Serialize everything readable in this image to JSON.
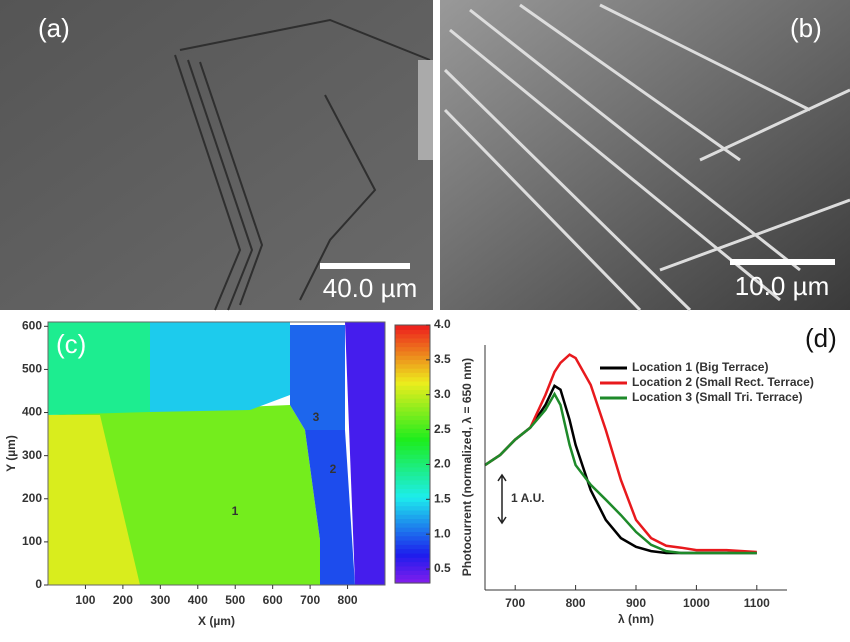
{
  "panels": [
    {
      "label": "(a)",
      "scale_bar": "40.0 µm"
    },
    {
      "label": "(b)",
      "scale_bar": "10.0 µm"
    }
  ],
  "chart_data": [
    {
      "type": "heatmap",
      "label": "(c)",
      "xlabel": "X (µm)",
      "ylabel": "Y (µm)",
      "xlim": [
        0,
        900
      ],
      "xticks": [
        100,
        200,
        300,
        400,
        500,
        600,
        700,
        800
      ],
      "ylim": [
        0,
        610
      ],
      "yticks": [
        0,
        100,
        200,
        300,
        400,
        500,
        600
      ],
      "clim": [
        0.3,
        4.0
      ],
      "cticks": [
        0.5,
        {
          "value": 1,
          "label": "1.0"
        },
        1.5,
        {
          "value": 2,
          "label": "2.0"
        },
        2.5,
        {
          "value": 3,
          "label": "3.0"
        },
        3.5,
        {
          "value": 4,
          "label": "4.0"
        }
      ],
      "regions": [
        {
          "label": "1",
          "value": 2.7
        },
        {
          "label": "2",
          "value": 0.9
        },
        {
          "label": "3",
          "value": 1.0
        },
        {
          "value": 3.1
        },
        {
          "value": 1.9
        },
        {
          "value": 1.4
        },
        {
          "value": 0.55
        }
      ]
    },
    {
      "type": "line",
      "label": "(d)",
      "xlabel": "λ (nm)",
      "ylabel": "Photocurrent (normalized, λ = 650 nm)",
      "xlim": [
        650,
        1150
      ],
      "xticks": [
        700,
        800,
        900,
        1000,
        1100
      ],
      "ylim": [
        0,
        5.1
      ],
      "scale_bar": {
        "value": 1,
        "label": "1 A.U."
      },
      "x": [
        650,
        675,
        700,
        725,
        750,
        765,
        775,
        790,
        800,
        825,
        850,
        875,
        900,
        925,
        950,
        975,
        1000,
        1050,
        1100
      ],
      "series": [
        {
          "name": "Location 1 (Big Terrace)",
          "color": "#000000",
          "values": [
            2.6,
            2.81,
            3.13,
            3.38,
            3.85,
            4.25,
            4.17,
            3.54,
            3.02,
            2.08,
            1.46,
            1.08,
            0.9,
            0.81,
            0.77,
            0.77,
            0.77,
            0.77,
            0.77
          ]
        },
        {
          "name": "Location 2 (Small Rect. Terrace)",
          "color": "#e8191d",
          "values": [
            2.6,
            2.81,
            3.13,
            3.38,
            4.06,
            4.54,
            4.73,
            4.9,
            4.83,
            4.27,
            3.33,
            2.29,
            1.46,
            1.08,
            0.92,
            0.88,
            0.83,
            0.83,
            0.79
          ]
        },
        {
          "name": "Location 3 (Small Tri. Terrace)",
          "color": "#1e8a2a",
          "values": [
            2.6,
            2.81,
            3.13,
            3.38,
            3.75,
            4.08,
            3.85,
            3.02,
            2.6,
            2.19,
            1.88,
            1.56,
            1.21,
            0.94,
            0.81,
            0.77,
            0.77,
            0.77,
            0.77
          ]
        }
      ]
    }
  ]
}
